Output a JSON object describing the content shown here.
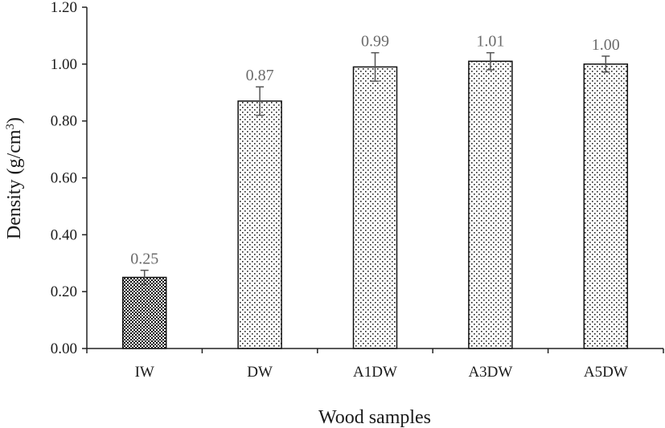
{
  "chart_data": {
    "type": "bar",
    "title": "",
    "xlabel": "Wood samples",
    "ylabel": "Density (g/cm",
    "ylabel_superscript": "3",
    "ylabel_close": ")",
    "categories": [
      "IW",
      "DW",
      "A1DW",
      "A3DW",
      "A5DW"
    ],
    "values": [
      0.25,
      0.87,
      0.99,
      1.01,
      1.0
    ],
    "data_labels": [
      "0.25",
      "0.87",
      "0.99",
      "1.01",
      "1.00"
    ],
    "error": [
      0.025,
      0.05,
      0.05,
      0.03,
      0.028
    ],
    "ylim": [
      0,
      1.2
    ],
    "yticks": [
      0.0,
      0.2,
      0.4,
      0.6,
      0.8,
      1.0,
      1.2
    ],
    "ytick_labels": [
      "0.00",
      "0.20",
      "0.40",
      "0.60",
      "0.80",
      "1.00",
      "1.20"
    ],
    "bar_fill": [
      "crosshatch",
      "dots",
      "dots",
      "dots",
      "dots"
    ],
    "grid": false,
    "legend": "none"
  }
}
